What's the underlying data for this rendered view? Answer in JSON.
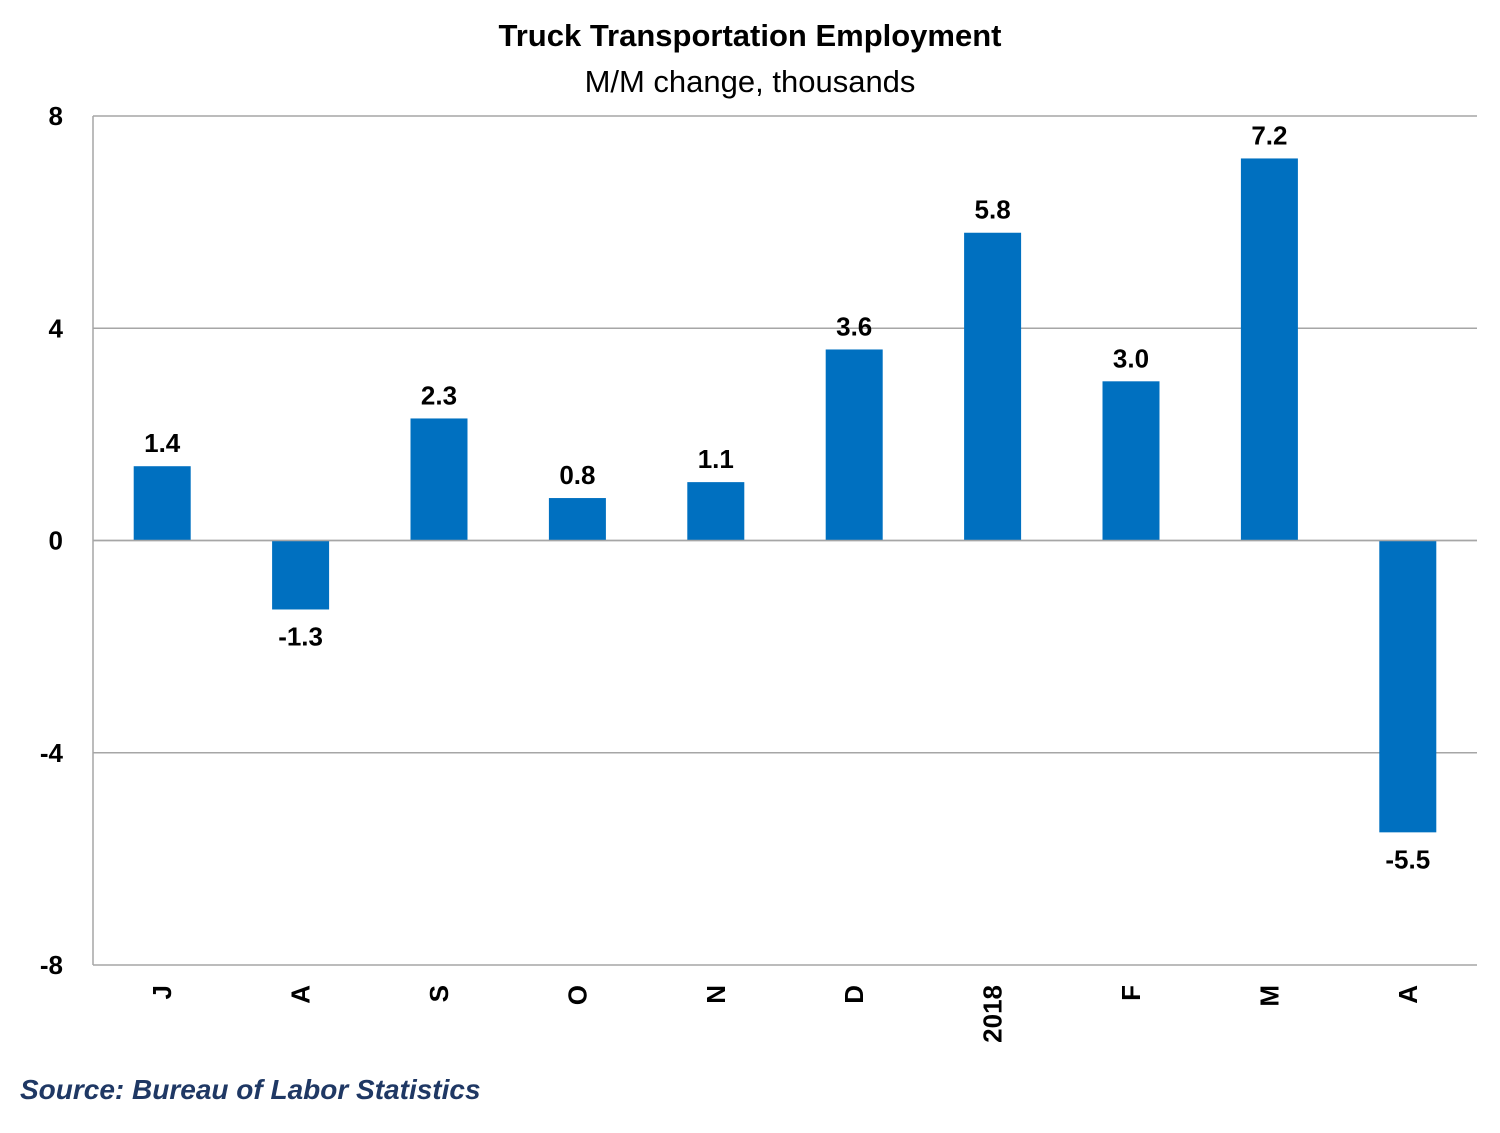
{
  "chart_data": {
    "type": "bar",
    "title": "Truck Transportation Employment",
    "subtitle": "M/M change, thousands",
    "categories": [
      "J",
      "A",
      "S",
      "O",
      "N",
      "D",
      "2018",
      "F",
      "M",
      "A"
    ],
    "values": [
      1.4,
      -1.3,
      2.3,
      0.8,
      1.1,
      3.6,
      5.8,
      3.0,
      7.2,
      -5.5
    ],
    "value_labels": [
      "1.4",
      "-1.3",
      "2.3",
      "0.8",
      "1.1",
      "3.6",
      "5.8",
      "3.0",
      "7.2",
      "-5.5"
    ],
    "ylim": [
      -8,
      8
    ],
    "yticks": [
      8,
      4,
      0,
      -4,
      -8
    ],
    "ytick_labels": [
      "8",
      "4",
      "0",
      "-4",
      "-8"
    ],
    "grid": true,
    "legend": "none",
    "bar_color": "#0070C0",
    "grid_color": "#A6A6A6"
  },
  "source": {
    "text": "Source: Bureau of Labor Statistics",
    "color": "#1F3864"
  }
}
